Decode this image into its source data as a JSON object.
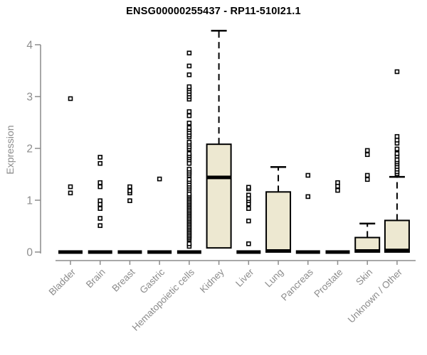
{
  "colors": {
    "background": "#ffffff",
    "box_fill": "#ede8d1",
    "box_stroke": "#000000",
    "median": "#000000",
    "outlier_fill": "#ffffff",
    "outlier_stroke": "#000000",
    "axis": "#8c8c8c",
    "tick_label": "#8c8c8c",
    "title": "#000000"
  },
  "chart_data": {
    "type": "boxplot",
    "title": "ENSG00000255437 - RP11-510I21.1",
    "ylabel": "Expression",
    "xlabel": "",
    "ylim": [
      0,
      4.3
    ],
    "y_ticks": [
      0,
      1,
      2,
      3,
      4
    ],
    "grid": "off",
    "categories": [
      "Bladder",
      "Brain",
      "Breast",
      "Gastric",
      "Hematopoietic cells",
      "Kidney",
      "Liver",
      "Lung",
      "Pancreas",
      "Prostate",
      "Skin",
      "Unknown / Other"
    ],
    "boxes": [
      {
        "name": "Bladder",
        "q1": 0,
        "median": 0,
        "q3": 0,
        "whisker_low": 0,
        "whisker_high": 0,
        "outliers": [
          1.14,
          1.26,
          2.96
        ]
      },
      {
        "name": "Brain",
        "q1": 0,
        "median": 0,
        "q3": 0,
        "whisker_low": 0,
        "whisker_high": 0,
        "outliers": [
          0.51,
          0.65,
          0.84,
          0.92,
          0.99,
          1.26,
          1.34,
          1.71,
          1.83
        ]
      },
      {
        "name": "Breast",
        "q1": 0,
        "median": 0,
        "q3": 0,
        "whisker_low": 0,
        "whisker_high": 0,
        "outliers": [
          0.99,
          1.14,
          1.18,
          1.26
        ]
      },
      {
        "name": "Gastric",
        "q1": 0,
        "median": 0,
        "q3": 0,
        "whisker_low": 0,
        "whisker_high": 0,
        "outliers": [
          1.41
        ]
      },
      {
        "name": "Hematopoietic cells",
        "q1": 0,
        "median": 0,
        "q3": 0,
        "whisker_low": 0,
        "whisker_high": 0,
        "outliers": [
          0.11,
          0.16,
          0.25,
          0.28,
          0.31,
          0.34,
          0.37,
          0.4,
          0.43,
          0.46,
          0.49,
          0.52,
          0.55,
          0.58,
          0.61,
          0.64,
          0.67,
          0.7,
          0.73,
          0.76,
          0.79,
          0.82,
          0.85,
          0.88,
          0.91,
          0.94,
          0.97,
          1.0,
          1.03,
          1.06,
          1.09,
          1.12,
          1.19,
          1.23,
          1.27,
          1.31,
          1.36,
          1.4,
          1.48,
          1.52,
          1.56,
          1.6,
          1.71,
          1.78,
          1.82,
          1.86,
          1.9,
          1.99,
          2.03,
          2.08,
          2.12,
          2.22,
          2.26,
          2.31,
          2.36,
          2.4,
          2.49,
          2.63,
          2.71,
          2.95,
          3.0,
          3.05,
          3.1,
          3.15,
          3.19,
          3.42,
          3.59,
          3.84
        ]
      },
      {
        "name": "Kidney",
        "q1": 0.08,
        "median": 1.44,
        "q3": 2.08,
        "whisker_low": 0.08,
        "whisker_high": 4.27,
        "outliers": []
      },
      {
        "name": "Liver",
        "q1": 0,
        "median": 0,
        "q3": 0,
        "whisker_low": 0,
        "whisker_high": 0,
        "outliers": [
          0.16,
          0.6,
          0.84,
          0.93,
          0.99,
          1.03,
          1.1,
          1.22,
          1.25
        ]
      },
      {
        "name": "Lung",
        "q1": 0,
        "median": 0.02,
        "q3": 1.16,
        "whisker_low": 0,
        "whisker_high": 1.64,
        "outliers": []
      },
      {
        "name": "Pancreas",
        "q1": 0,
        "median": 0,
        "q3": 0,
        "whisker_low": 0,
        "whisker_high": 0,
        "outliers": [
          1.07,
          1.48
        ]
      },
      {
        "name": "Prostate",
        "q1": 0,
        "median": 0,
        "q3": 0,
        "whisker_low": 0,
        "whisker_high": 0,
        "outliers": [
          1.19,
          1.27,
          1.34
        ]
      },
      {
        "name": "Skin",
        "q1": 0,
        "median": 0.02,
        "q3": 0.28,
        "whisker_low": 0,
        "whisker_high": 0.55,
        "outliers": [
          1.4,
          1.48,
          1.88,
          1.96
        ]
      },
      {
        "name": "Unknown / Other",
        "q1": 0,
        "median": 0.03,
        "q3": 0.61,
        "whisker_low": 0,
        "whisker_high": 1.45,
        "outliers": [
          1.51,
          1.55,
          1.6,
          1.65,
          1.7,
          1.74,
          1.78,
          1.85,
          1.9,
          1.99,
          2.1,
          2.16,
          2.23,
          3.48
        ]
      }
    ]
  }
}
